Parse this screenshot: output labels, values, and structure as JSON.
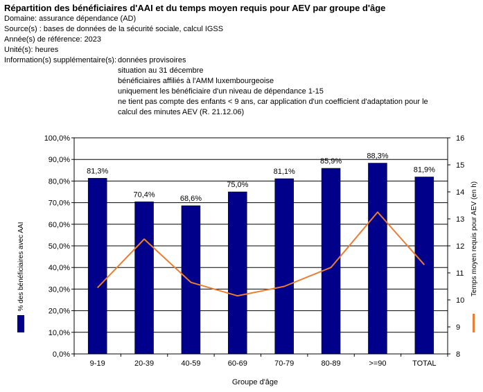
{
  "header": {
    "title": "Répartition des bénéficiaires d'AAI et du temps moyen requis pour AEV par groupe d'âge",
    "meta": [
      "Domaine: assurance dépendance (AD)",
      "Source(s) : bases de données de la sécurité sociale, calcul IGSS",
      "Année(s) de référence: 2023",
      "Unité(s): heures"
    ],
    "info_label": "Information(s) supplémentaire(s):",
    "info_items": [
      "données provisoires",
      "situation au 31 décembre",
      "bénéficiaires affiliés à l'AMM luxembourgeoise",
      "uniquement les bénéficiaire d'un niveau de dépendance 1-15",
      "ne tient pas compte des enfants < 9 ans, car application d'un coefficient d'adaptation pour le",
      "calcul des minutes AEV (R. 21.12.06)"
    ]
  },
  "chart_data": {
    "type": "bar",
    "categories": [
      "9-19",
      "20-39",
      "40-59",
      "60-69",
      "70-79",
      "80-89",
      ">=90",
      "TOTAL"
    ],
    "series": [
      {
        "name": "% des bénéficiaires avec AAI",
        "type": "bar",
        "axis": "left",
        "color": "#00008b",
        "values": [
          81.3,
          70.4,
          68.6,
          75.0,
          81.1,
          85.9,
          88.3,
          81.9
        ],
        "data_labels": [
          "81,3%",
          "70,4%",
          "68,6%",
          "75,0%",
          "81,1%",
          "85,9%",
          "88,3%",
          "81,9%"
        ]
      },
      {
        "name": "Temps moyen requis pour AEV (en h)",
        "type": "line",
        "axis": "right",
        "color": "#ed7d31",
        "values": [
          10.45,
          12.25,
          10.65,
          10.15,
          10.5,
          11.2,
          13.25,
          11.3
        ]
      }
    ],
    "xlabel": "Groupe d'âge",
    "ylabel_left": "% des bénéficiaires avec AAI",
    "ylabel_right": "Temps moyen requis pour AEV (en h)",
    "ylim_left": [
      0,
      100
    ],
    "ylim_right": [
      8,
      16
    ],
    "yticks_left": [
      "0,0%",
      "10,0%",
      "20,0%",
      "30,0%",
      "40,0%",
      "50,0%",
      "60,0%",
      "70,0%",
      "80,0%",
      "90,0%",
      "100,0%"
    ],
    "yticks_right": [
      "8",
      "9",
      "10",
      "11",
      "12",
      "13",
      "14",
      "15",
      "16"
    ],
    "grid": true
  }
}
